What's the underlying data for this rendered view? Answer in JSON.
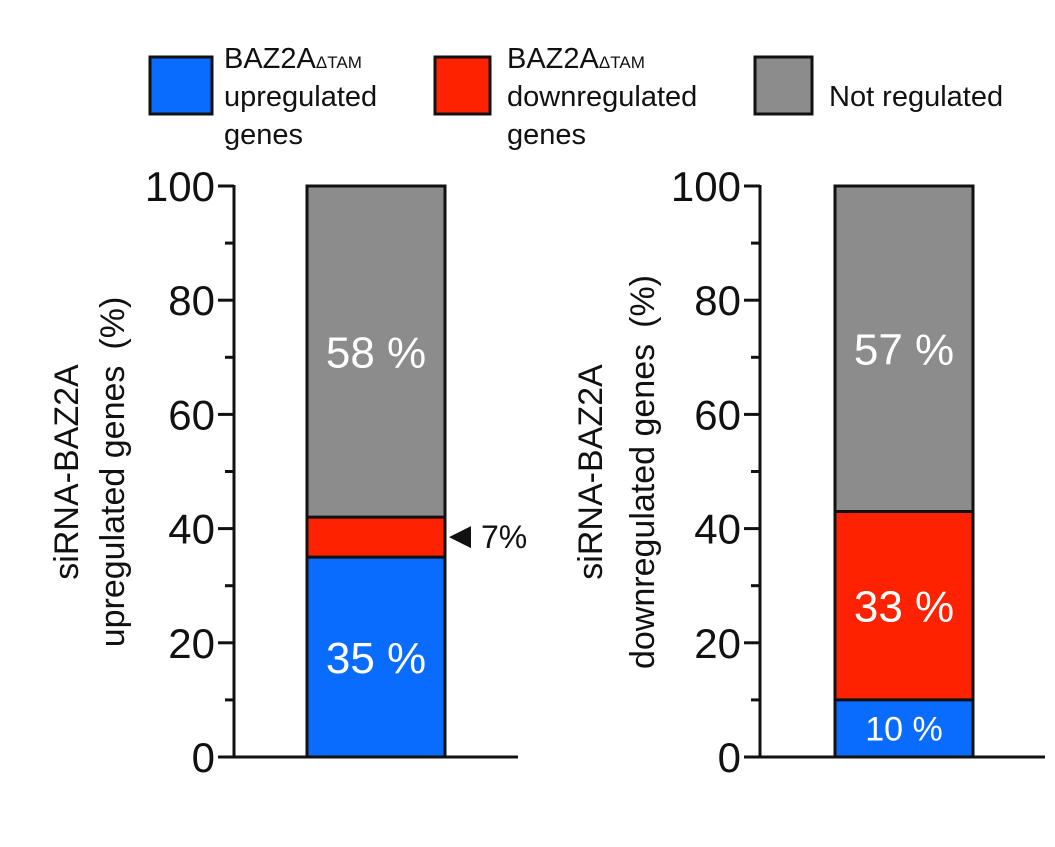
{
  "legend": {
    "items": [
      {
        "line1": "BAZ2A",
        "sub": "ΔTAM",
        "line2": "upregulated",
        "line3": "genes",
        "color": "#0a6cff"
      },
      {
        "line1": "BAZ2A",
        "sub": "ΔTAM",
        "line2": "downregulated",
        "line3": "genes",
        "color": "#ff2200"
      },
      {
        "line1": "Not regulated",
        "sub": "",
        "line2": "",
        "line3": "",
        "color": "#8c8c8c"
      }
    ]
  },
  "chart_data": [
    {
      "type": "bar",
      "stacked": true,
      "title": "",
      "xlabel": "",
      "ylabel_line1": "siRNA-BAZ2A",
      "ylabel_line2": "upregulated genes",
      "ylabel_unit": "(%)",
      "ylim": [
        0,
        100
      ],
      "yticks": [
        0,
        20,
        40,
        60,
        80,
        100
      ],
      "series": [
        {
          "name": "BAZ2AΔTAM upregulated genes",
          "value": 35,
          "label": "35 %",
          "color": "#0a6cff"
        },
        {
          "name": "BAZ2AΔTAM downregulated genes",
          "value": 7,
          "label": "7%",
          "color": "#ff2200"
        },
        {
          "name": "Not regulated",
          "value": 58,
          "label": "58 %",
          "color": "#8c8c8c"
        }
      ]
    },
    {
      "type": "bar",
      "stacked": true,
      "title": "",
      "xlabel": "",
      "ylabel_line1": "siRNA-BAZ2A",
      "ylabel_line2": "downregulated genes",
      "ylabel_unit": "(%)",
      "ylim": [
        0,
        100
      ],
      "yticks": [
        0,
        20,
        40,
        60,
        80,
        100
      ],
      "series": [
        {
          "name": "BAZ2AΔTAM upregulated genes",
          "value": 10,
          "label": "10 %",
          "color": "#0a6cff"
        },
        {
          "name": "BAZ2AΔTAM downregulated genes",
          "value": 33,
          "label": "33 %",
          "color": "#ff2200"
        },
        {
          "name": "Not regulated",
          "value": 57,
          "label": "57 %",
          "color": "#8c8c8c"
        }
      ]
    }
  ]
}
